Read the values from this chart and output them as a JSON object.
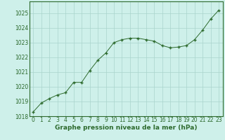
{
  "x": [
    0,
    1,
    2,
    3,
    4,
    5,
    6,
    7,
    8,
    9,
    10,
    11,
    12,
    13,
    14,
    15,
    16,
    17,
    18,
    19,
    20,
    21,
    22,
    23
  ],
  "y": [
    1018.3,
    1018.9,
    1019.2,
    1019.45,
    1019.6,
    1020.3,
    1020.3,
    1021.1,
    1021.8,
    1022.3,
    1023.0,
    1023.2,
    1023.3,
    1023.3,
    1023.2,
    1023.1,
    1022.8,
    1022.65,
    1022.7,
    1022.8,
    1023.2,
    1023.85,
    1024.6,
    1025.2
  ],
  "line_color": "#2d6a2d",
  "marker_color": "#2d6a2d",
  "bg_color": "#cef0ea",
  "grid_color": "#aad4cc",
  "axes_color": "#2d6a2d",
  "xlabel": "Graphe pression niveau de la mer (hPa)",
  "xlabel_color": "#2d6a2d",
  "ylim": [
    1018,
    1025.8
  ],
  "yticks": [
    1018,
    1019,
    1020,
    1021,
    1022,
    1023,
    1024,
    1025
  ],
  "xticks": [
    0,
    1,
    2,
    3,
    4,
    5,
    6,
    7,
    8,
    9,
    10,
    11,
    12,
    13,
    14,
    15,
    16,
    17,
    18,
    19,
    20,
    21,
    22,
    23
  ],
  "tick_fontsize": 5.5,
  "xlabel_fontsize": 6.5
}
